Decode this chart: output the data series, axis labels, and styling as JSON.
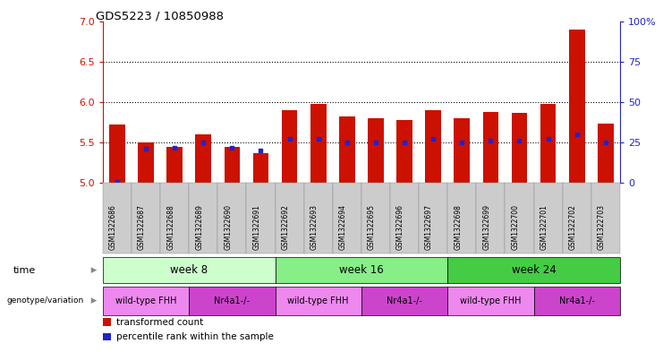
{
  "title": "GDS5223 / 10850988",
  "samples": [
    "GSM1322686",
    "GSM1322687",
    "GSM1322688",
    "GSM1322689",
    "GSM1322690",
    "GSM1322691",
    "GSM1322692",
    "GSM1322693",
    "GSM1322694",
    "GSM1322695",
    "GSM1322696",
    "GSM1322697",
    "GSM1322698",
    "GSM1322699",
    "GSM1322700",
    "GSM1322701",
    "GSM1322702",
    "GSM1322703"
  ],
  "transformed_count": [
    5.72,
    5.5,
    5.45,
    5.6,
    5.45,
    5.37,
    5.9,
    5.98,
    5.82,
    5.8,
    5.78,
    5.9,
    5.8,
    5.88,
    5.87,
    5.98,
    6.9,
    5.73
  ],
  "percentile_rank": [
    5.02,
    5.42,
    5.43,
    5.5,
    5.44,
    5.4,
    5.55,
    5.55,
    5.5,
    5.5,
    5.5,
    5.55,
    5.5,
    5.52,
    5.52,
    5.55,
    5.6,
    5.5
  ],
  "ylim_left": [
    5.0,
    7.0
  ],
  "ylim_right": [
    0,
    100
  ],
  "yticks_left": [
    5.0,
    5.5,
    6.0,
    6.5,
    7.0
  ],
  "yticks_right": [
    0,
    25,
    50,
    75,
    100
  ],
  "bar_color": "#cc1100",
  "percentile_color": "#2222cc",
  "time_groups": [
    {
      "label": "week 8",
      "start": 0,
      "end": 5
    },
    {
      "label": "week 16",
      "start": 6,
      "end": 11
    },
    {
      "label": "week 24",
      "start": 12,
      "end": 17
    }
  ],
  "time_colors": [
    "#ccffcc",
    "#88ee88",
    "#44cc44"
  ],
  "genotype_groups": [
    {
      "label": "wild-type FHH",
      "start": 0,
      "end": 2
    },
    {
      "label": "Nr4a1-/-",
      "start": 3,
      "end": 5
    },
    {
      "label": "wild-type FHH",
      "start": 6,
      "end": 8
    },
    {
      "label": "Nr4a1-/-",
      "start": 9,
      "end": 11
    },
    {
      "label": "wild-type FHH",
      "start": 12,
      "end": 14
    },
    {
      "label": "Nr4a1-/-",
      "start": 15,
      "end": 17
    }
  ],
  "geno_colors": {
    "wild-type FHH": "#ee88ee",
    "Nr4a1-/-": "#cc44cc"
  },
  "dotted_grid_values": [
    5.5,
    6.0,
    6.5
  ],
  "bar_width": 0.55,
  "xticklabel_bg": "#cccccc",
  "n_samples": 18
}
